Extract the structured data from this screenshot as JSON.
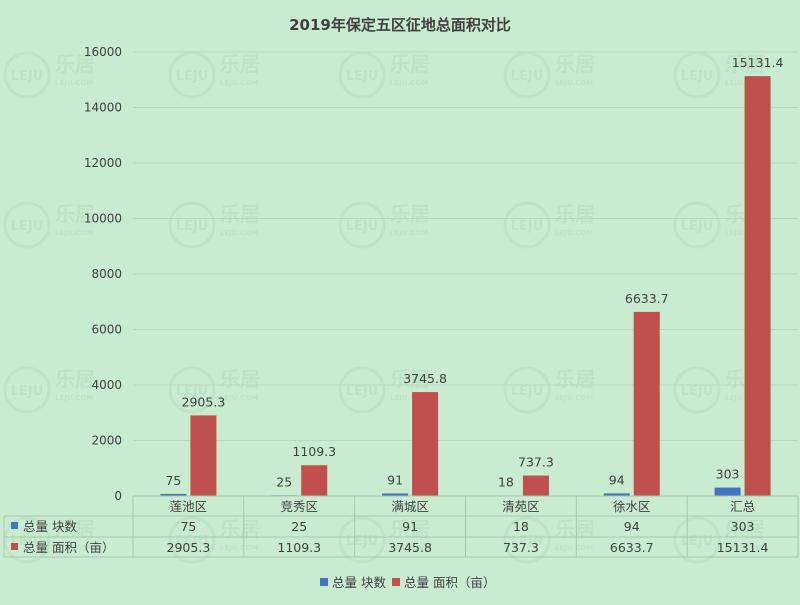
{
  "colors": {
    "blocks": "#4472c4",
    "area": "#c0504d",
    "background": "#c9ecd0"
  },
  "watermark": {
    "text": "LEJU",
    "cn": "乐居",
    "domain": "LEJU.COM"
  },
  "chart_data": {
    "type": "bar",
    "title": "2019年保定五区征地总面积对比",
    "categories": [
      "莲池区",
      "竞秀区",
      "满城区",
      "清苑区",
      "徐水区",
      "汇总"
    ],
    "ylim": [
      0,
      16000
    ],
    "yticks": [
      0,
      2000,
      4000,
      6000,
      8000,
      10000,
      12000,
      14000,
      16000
    ],
    "grid": true,
    "legend_position": "bottom",
    "series": [
      {
        "name": "总量 块数",
        "color": "#4472c4",
        "values": [
          75,
          25,
          91,
          18,
          94,
          303
        ]
      },
      {
        "name": "总量 面积（亩）",
        "color": "#c0504d",
        "values": [
          2905.3,
          1109.3,
          3745.8,
          737.3,
          6633.7,
          15131.4
        ]
      }
    ],
    "data_table": true
  }
}
